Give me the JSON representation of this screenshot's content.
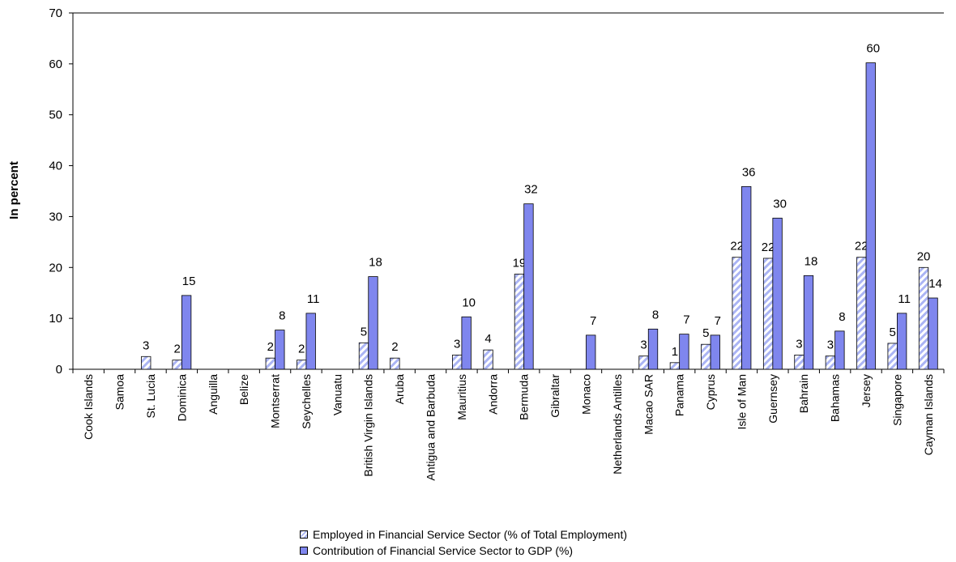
{
  "chart_data": {
    "type": "bar",
    "ylabel": "In percent",
    "ylim": [
      0,
      70
    ],
    "yticks": [
      0,
      10,
      20,
      30,
      40,
      50,
      60,
      70
    ],
    "categories": [
      "Cook Islands",
      "Samoa",
      "St. Lucia",
      "Dominica",
      "Anguilla",
      "Belize",
      "Montserrat",
      "Seychelles",
      "Vanuatu",
      "British Virgin Islands",
      "Aruba",
      "Antigua and Barbuda",
      "Mauritius",
      "Andorra",
      "Bermuda",
      "Gibraltar",
      "Monaco",
      "Netherlands Antilles",
      "Macao SAR",
      "Panama",
      "Cyprus",
      "Isle of Man",
      "Guernsey",
      "Bahrain",
      "Bahamas",
      "Jersey",
      "Singapore",
      "Cayman Islands"
    ],
    "series": [
      {
        "name": "Employed in Financial Service Sector (% of Total Employment)",
        "color": "#aab4f4",
        "pattern": "hatch",
        "values": [
          null,
          null,
          2.5,
          1.8,
          null,
          null,
          2.2,
          1.8,
          null,
          5.2,
          2.2,
          null,
          2.8,
          3.8,
          18.7,
          null,
          null,
          null,
          2.6,
          1.3,
          4.9,
          22.0,
          21.8,
          2.8,
          2.6,
          22.0,
          5.1,
          20.0
        ],
        "labels": [
          "",
          "",
          "3",
          "2",
          "",
          "",
          "2",
          "2",
          "",
          "5",
          "2",
          "",
          "3",
          "4",
          "19",
          "",
          "",
          "",
          "3",
          "1",
          "5",
          "22",
          "22",
          "3",
          "3",
          "22",
          "5",
          "20"
        ]
      },
      {
        "name": "Contribution of Financial Service Sector to GDP (%)",
        "color": "#7f86ee",
        "pattern": "solid",
        "values": [
          null,
          null,
          null,
          14.5,
          null,
          null,
          7.7,
          11.0,
          null,
          18.2,
          null,
          null,
          10.3,
          null,
          32.5,
          null,
          6.7,
          null,
          7.9,
          6.9,
          6.7,
          35.9,
          29.7,
          18.4,
          7.5,
          60.2,
          11.0,
          14.0
        ],
        "labels": [
          "",
          "",
          "",
          "15",
          "",
          "",
          "8",
          "11",
          "",
          "18",
          "",
          "",
          "10",
          "",
          "32",
          "",
          "7",
          "",
          "8",
          "7",
          "7",
          "36",
          "30",
          "18",
          "8",
          "60",
          "11",
          "14"
        ]
      }
    ],
    "legend_position": "bottom-center",
    "grid": false
  }
}
